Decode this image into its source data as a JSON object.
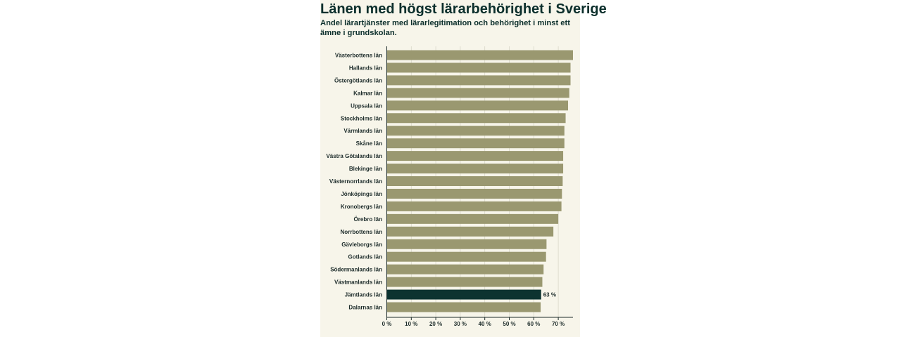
{
  "colors": {
    "bar": "#9a9870",
    "highlight": "#0d3330",
    "grid": "#d8d6c8",
    "axis": "#1c2b2a",
    "background": "#f7f5ea"
  },
  "chart_data": {
    "type": "bar",
    "orientation": "horizontal",
    "title": "Länen med högst lärarbehörighet i Sverige",
    "subtitle": "Andel lärartjänster med lärarlegitimation och behörighet i minst ett ämne i grundskolan.",
    "xlabel": "",
    "ylabel": "",
    "xlim": [
      0,
      76
    ],
    "xticks": [
      0,
      10,
      20,
      30,
      40,
      50,
      60,
      70
    ],
    "xtick_labels": [
      "0 %",
      "10 %",
      "20 %",
      "30 %",
      "40 %",
      "50 %",
      "60 %",
      "70 %"
    ],
    "grid": true,
    "categories": [
      "Västerbottens län",
      "Hallands län",
      "Östergötlands län",
      "Kalmar län",
      "Uppsala län",
      "Stockholms län",
      "Värmlands län",
      "Skåne län",
      "Västra Götalands län",
      "Blekinge län",
      "Västernorrlands län",
      "Jönköpings län",
      "Kronobergs län",
      "Örebro län",
      "Norrbottens län",
      "Gävleborgs län",
      "Gotlands län",
      "Södermanlands län",
      "Västmanlands län",
      "Jämtlands län",
      "Dalarnas län"
    ],
    "values": [
      76,
      75,
      75,
      74.5,
      74,
      73,
      72.5,
      72.5,
      72,
      72,
      71.8,
      71.5,
      71.3,
      70,
      68,
      65.2,
      65,
      64,
      63.5,
      63,
      62.8
    ],
    "highlight_index": 19,
    "annotation": "63 %"
  }
}
